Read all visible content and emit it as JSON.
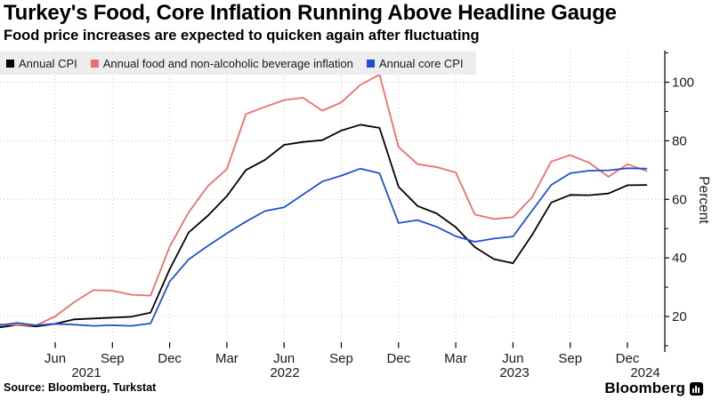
{
  "header": {
    "title": "Turkey's Food, Core Inflation Running Above Headline Gauge",
    "subtitle": "Food price increases are expected to quicken again after fluctuating"
  },
  "legend": [
    {
      "label": "Annual CPI",
      "color": "#000000"
    },
    {
      "label": "Annual food and non-alcoholic beverage inflation",
      "color": "#ec6e6e"
    },
    {
      "label": "Annual core CPI",
      "color": "#1e50cf"
    }
  ],
  "footer": {
    "source": "Source: Bloomberg, Turkstat",
    "brand": "Bloomberg"
  },
  "chart_data": {
    "type": "line",
    "title": "Turkey's Food, Core Inflation Running Above Headline Gauge",
    "subtitle": "Food price increases are expected to quicken again after fluctuating",
    "ylabel": "Percent",
    "ylim": [
      10,
      110
    ],
    "yticks_major": [
      20,
      40,
      60,
      80,
      100
    ],
    "yticks_minor": [
      10,
      30,
      50,
      70,
      90,
      110
    ],
    "grid": "dotted",
    "legend_position": "top-left",
    "axis_side": "right",
    "x": [
      "2021-03",
      "2021-04",
      "2021-05",
      "2021-06",
      "2021-07",
      "2021-08",
      "2021-09",
      "2021-10",
      "2021-11",
      "2021-12",
      "2022-01",
      "2022-02",
      "2022-03",
      "2022-04",
      "2022-05",
      "2022-06",
      "2022-07",
      "2022-08",
      "2022-09",
      "2022-10",
      "2022-11",
      "2022-12",
      "2023-01",
      "2023-02",
      "2023-03",
      "2023-04",
      "2023-05",
      "2023-06",
      "2023-07",
      "2023-08",
      "2023-09",
      "2023-10",
      "2023-11",
      "2023-12",
      "2024-01"
    ],
    "xticks": [
      {
        "i": 3,
        "label": "Jun"
      },
      {
        "i": 6,
        "label": "Sep"
      },
      {
        "i": 9,
        "label": "Dec"
      },
      {
        "i": 12,
        "label": "Mar"
      },
      {
        "i": 15,
        "label": "Jun"
      },
      {
        "i": 18,
        "label": "Sep"
      },
      {
        "i": 21,
        "label": "Dec"
      },
      {
        "i": 24,
        "label": "Mar"
      },
      {
        "i": 27,
        "label": "Jun"
      },
      {
        "i": 30,
        "label": "Sep"
      },
      {
        "i": 33,
        "label": "Dec"
      }
    ],
    "year_labels": [
      "2021",
      "2022",
      "2023",
      "2024"
    ],
    "series": [
      {
        "name": "Annual CPI",
        "color": "#000000",
        "values": [
          16.2,
          17.1,
          16.6,
          17.5,
          19.0,
          19.3,
          19.6,
          19.9,
          21.3,
          36.1,
          48.7,
          54.4,
          61.1,
          70.0,
          73.5,
          78.6,
          79.6,
          80.2,
          83.5,
          85.5,
          84.4,
          64.3,
          57.7,
          55.2,
          50.5,
          43.7,
          39.6,
          38.2,
          47.8,
          58.9,
          61.5,
          61.4,
          62.0,
          64.8,
          64.9
        ]
      },
      {
        "name": "Annual food and non-alcoholic beverage inflation",
        "color": "#ec6e6e",
        "values": [
          17.4,
          17.0,
          17.0,
          20.0,
          24.9,
          29.0,
          28.8,
          27.4,
          27.1,
          43.8,
          55.6,
          64.5,
          70.3,
          89.1,
          91.6,
          93.9,
          94.7,
          90.3,
          93.1,
          99.1,
          102.6,
          77.9,
          72.0,
          71.0,
          69.2,
          54.8,
          53.3,
          53.9,
          60.7,
          72.9,
          75.1,
          72.5,
          67.7,
          72.0,
          69.7
        ]
      },
      {
        "name": "Annual core CPI",
        "color": "#1e50cf",
        "values": [
          16.9,
          17.8,
          17.0,
          17.5,
          17.2,
          16.8,
          17.0,
          16.8,
          17.6,
          31.9,
          39.5,
          44.1,
          48.4,
          52.4,
          56.0,
          57.3,
          61.7,
          66.1,
          68.1,
          70.5,
          68.9,
          51.9,
          52.9,
          50.6,
          47.4,
          45.5,
          46.6,
          47.3,
          56.1,
          64.9,
          68.9,
          69.8,
          69.9,
          70.6,
          70.5
        ]
      }
    ]
  }
}
